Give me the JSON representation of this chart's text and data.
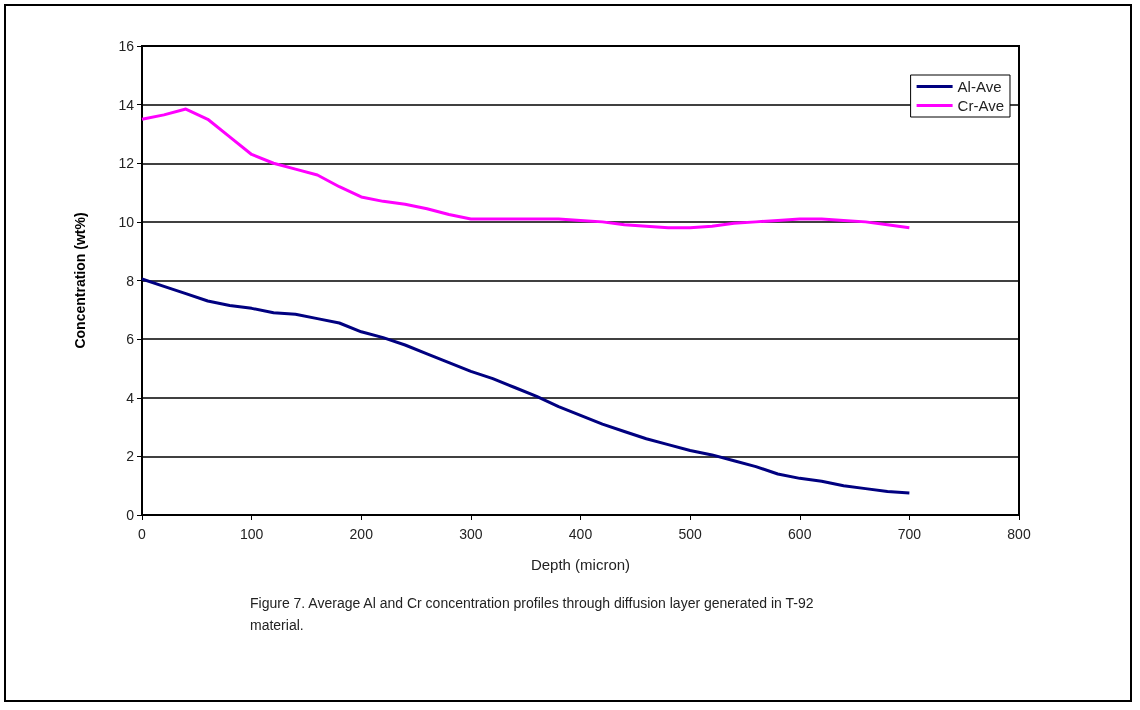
{
  "chart_data": {
    "type": "line",
    "xlabel": "Depth (micron)",
    "ylabel": "Concentration (wt%)",
    "annotations": [
      "Figure 7. Average Al and Cr concentration profiles through diffusion layer generated in T-92 material."
    ],
    "x": [
      0,
      20,
      40,
      60,
      80,
      100,
      120,
      140,
      160,
      180,
      200,
      220,
      240,
      260,
      280,
      300,
      320,
      340,
      360,
      380,
      400,
      420,
      440,
      460,
      480,
      500,
      520,
      540,
      560,
      580,
      600,
      620,
      640,
      660,
      680,
      700
    ],
    "series": [
      {
        "name": "Al-Ave",
        "color": "#000080",
        "values": [
          8.05,
          7.8,
          7.55,
          7.3,
          7.15,
          7.05,
          6.9,
          6.85,
          6.7,
          6.55,
          6.25,
          6.05,
          5.8,
          5.5,
          5.2,
          4.9,
          4.65,
          4.35,
          4.05,
          3.7,
          3.4,
          3.1,
          2.85,
          2.6,
          2.4,
          2.2,
          2.05,
          1.85,
          1.65,
          1.4,
          1.25,
          1.15,
          1.0,
          0.9,
          0.8,
          0.75
        ]
      },
      {
        "name": "Cr-Ave",
        "color": "#ff00ff",
        "values": [
          13.5,
          13.65,
          13.85,
          13.5,
          12.9,
          12.3,
          12.0,
          11.8,
          11.6,
          11.2,
          10.85,
          10.7,
          10.6,
          10.45,
          10.25,
          10.1,
          10.1,
          10.1,
          10.1,
          10.1,
          10.05,
          10.0,
          9.9,
          9.85,
          9.8,
          9.8,
          9.85,
          9.95,
          10.0,
          10.05,
          10.1,
          10.1,
          10.05,
          10.0,
          9.9,
          9.8
        ]
      }
    ],
    "xlim": [
      0,
      800
    ],
    "xticks": [
      0,
      100,
      200,
      300,
      400,
      500,
      600,
      700,
      800
    ],
    "ylim": [
      0,
      16
    ],
    "yticks": [
      0,
      2,
      4,
      6,
      8,
      10,
      12,
      14,
      16
    ],
    "grid": "y",
    "legend": "top right",
    "marker": "none",
    "line_style": "solid"
  }
}
